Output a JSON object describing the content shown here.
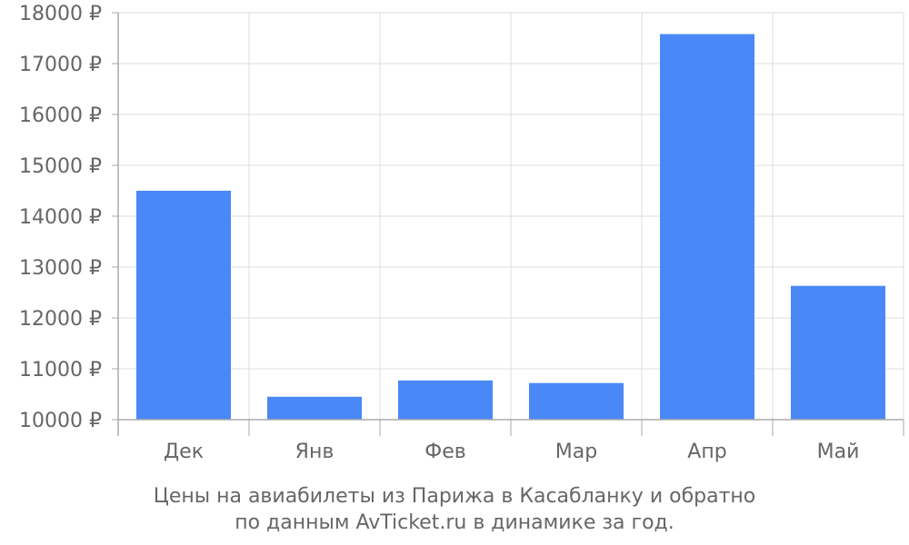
{
  "colors": {
    "bar": "#4a88f8",
    "grid": "#dddddd",
    "axis": "#aaaaaa",
    "text": "#666666"
  },
  "caption": {
    "line1": "Цены на авиабилеты из Парижа в Касабланку и обратно",
    "line2": "по данным AvTicket.ru в динамике за год."
  },
  "chart_data": {
    "type": "bar",
    "categories": [
      "Дек",
      "Янв",
      "Фев",
      "Мар",
      "Апр",
      "Май"
    ],
    "values": [
      14500,
      10450,
      10770,
      10720,
      17580,
      12630
    ],
    "ylim": [
      10000,
      18000
    ],
    "yticks": [
      10000,
      11000,
      12000,
      13000,
      14000,
      15000,
      16000,
      17000,
      18000
    ],
    "ytick_suffix": " ₽",
    "grid": true,
    "legend": "none"
  }
}
